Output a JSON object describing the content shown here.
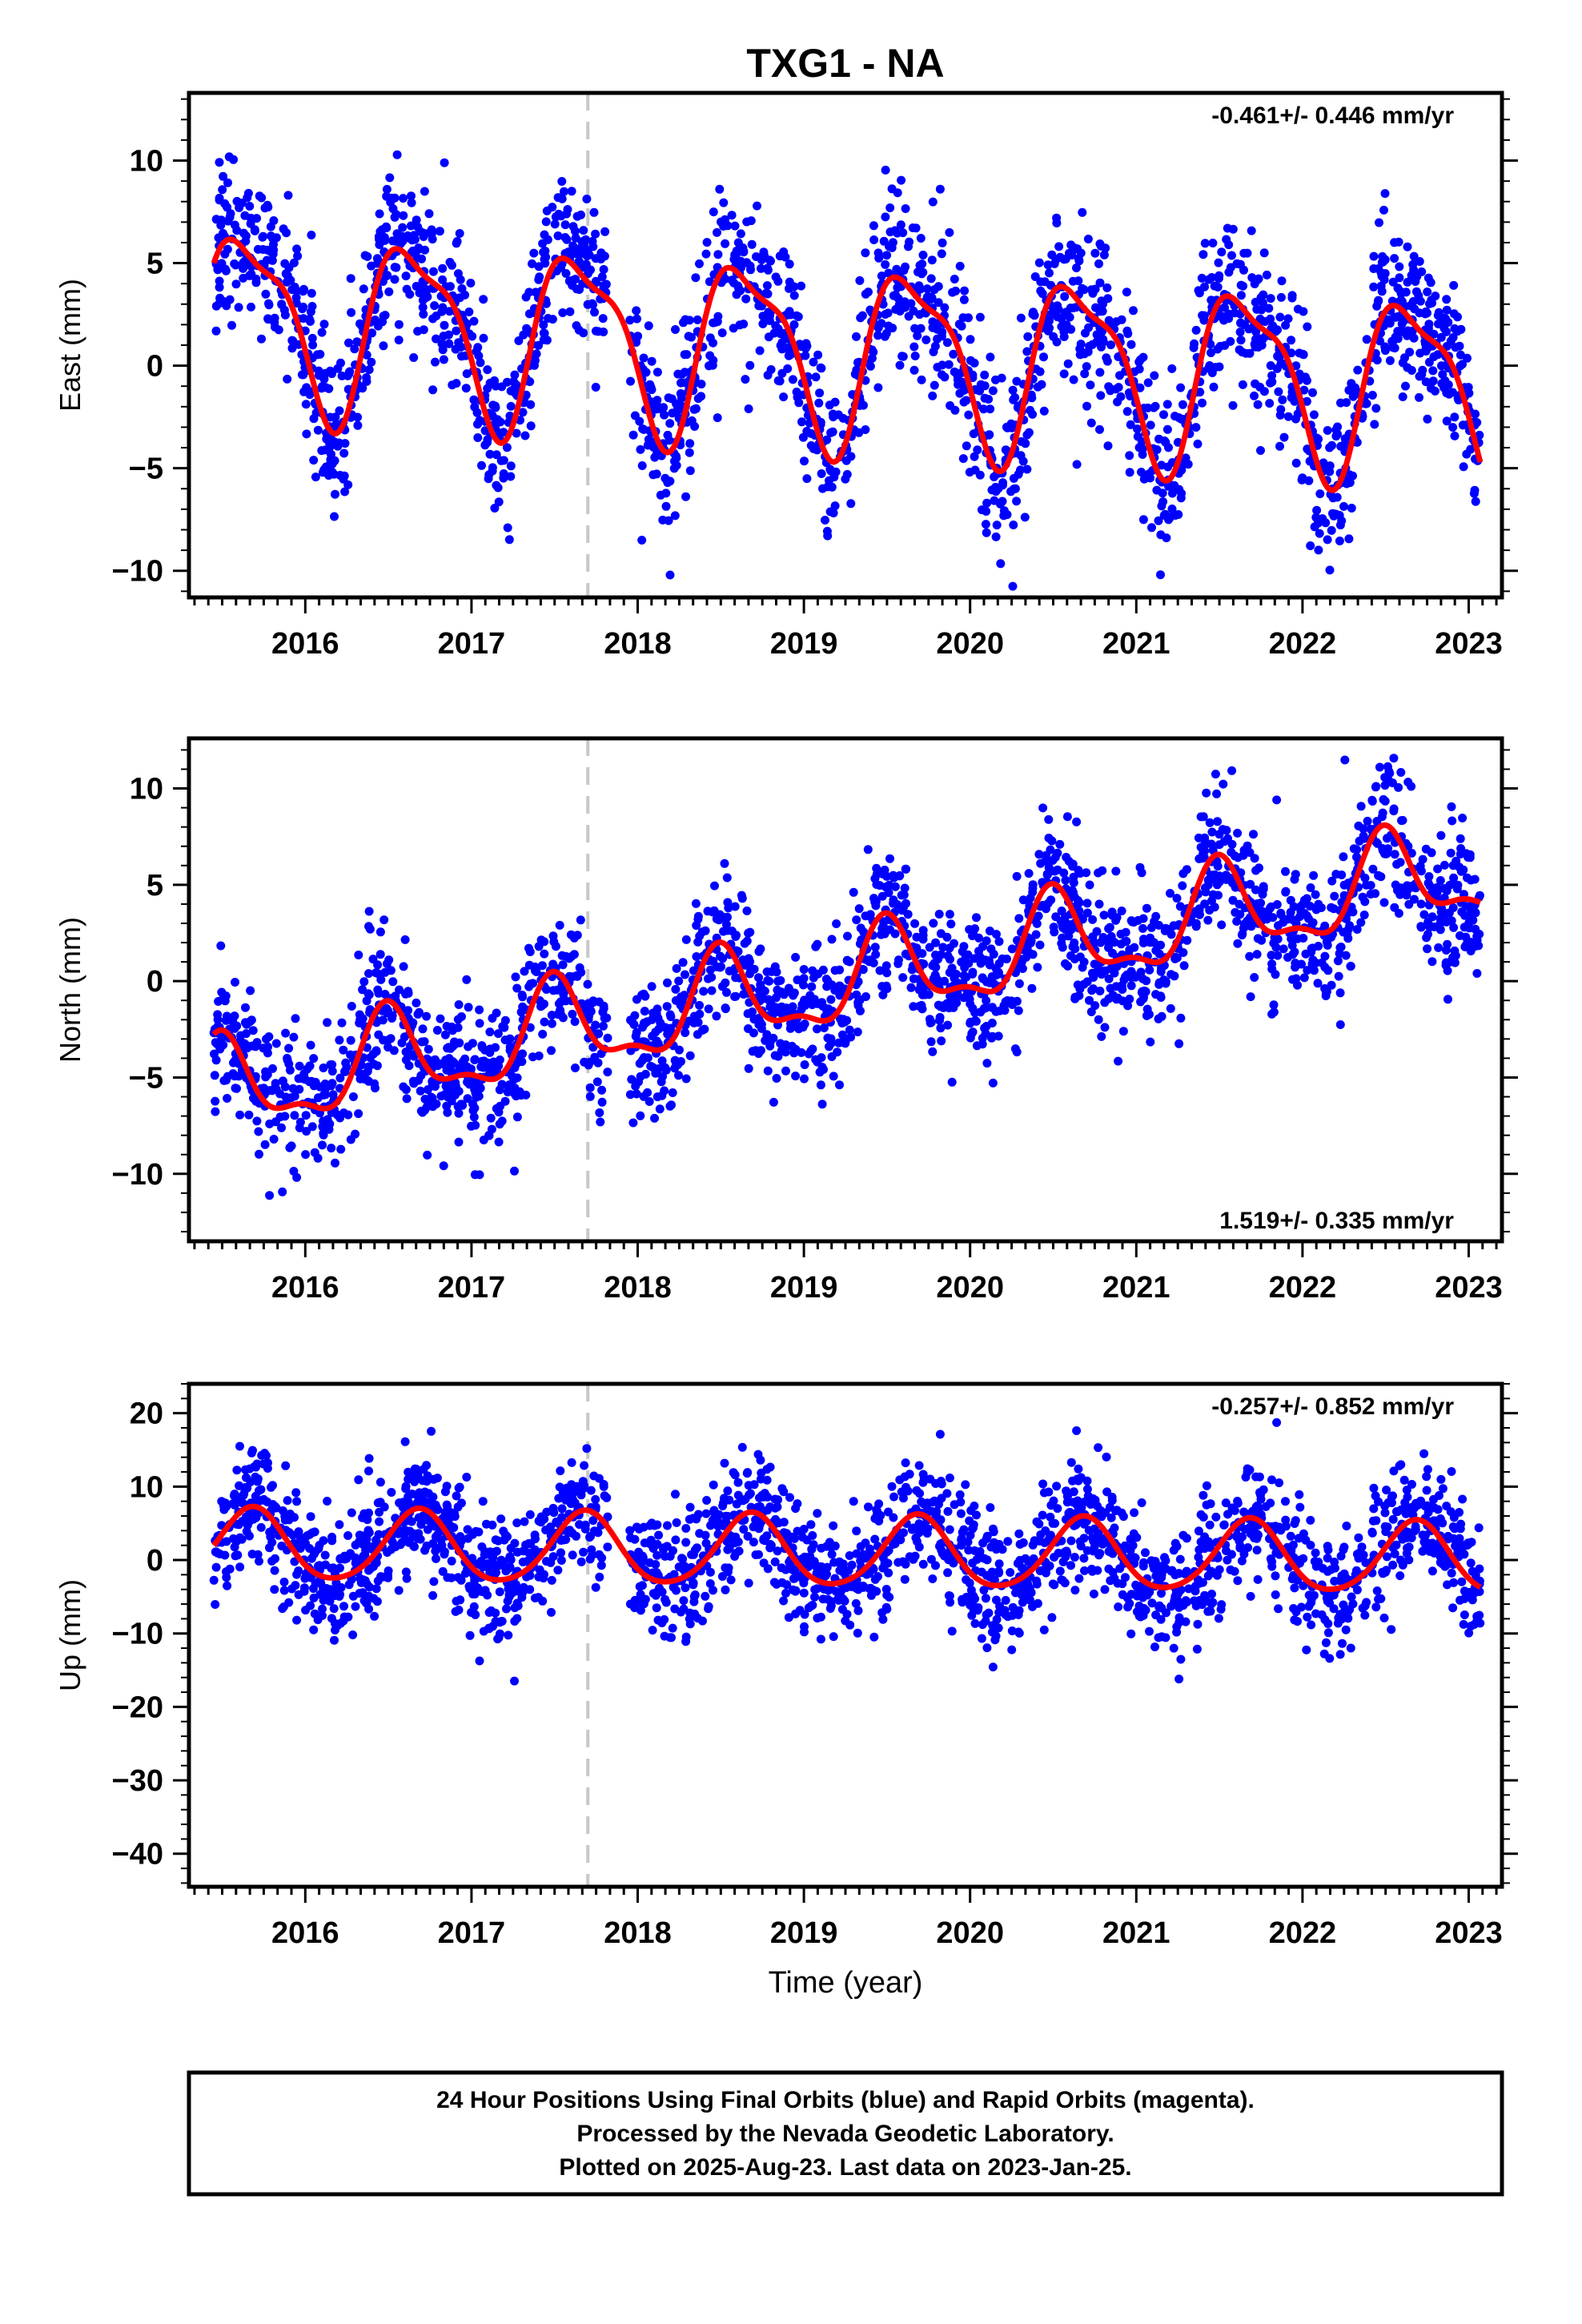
{
  "title": "TXG1 - NA",
  "xlabel": "Time (year)",
  "colors": {
    "final_orbits": "#0000ff",
    "fit": "#ff0000",
    "event_line": "#c8c8c8"
  },
  "footer": {
    "line1": "24 Hour Positions Using Final Orbits (blue) and Rapid Orbits (magenta).",
    "line2": "Processed by the Nevada Geodetic Laboratory.",
    "line3": "Plotted on 2025-Aug-23. Last data on 2023-Jan-25."
  },
  "chart_data": [
    {
      "type": "scatter",
      "panel": "east",
      "ylabel": "East (mm)",
      "rate_label": "-0.461+/- 0.446 mm/yr",
      "xlim": [
        2015.3,
        2023.2
      ],
      "ylim": [
        -11.3,
        13.3
      ],
      "x_ticks": [
        2016,
        2017,
        2018,
        2019,
        2020,
        2021,
        2022,
        2023
      ],
      "y_ticks": [
        -10,
        -5,
        0,
        5,
        10
      ],
      "event_line_x": 2017.7,
      "data_range": [
        2015.45,
        2023.07
      ],
      "fit": {
        "mean": 0.65,
        "trend_mm_per_yr": -0.461,
        "annual_amp": 4.2,
        "annual_peak": 0.65,
        "semiannual_amp": 1.3,
        "semiannual_peak": 0.45
      },
      "scatter_sigma": 2.0,
      "series": [
        {
          "name": "Final Orbits (blue)"
        }
      ]
    },
    {
      "type": "scatter",
      "panel": "north",
      "ylabel": "North (mm)",
      "rate_label": "1.519+/- 0.335 mm/yr",
      "xlim": [
        2015.3,
        2023.2
      ],
      "ylim": [
        -13.5,
        12.6
      ],
      "x_ticks": [
        2016,
        2017,
        2018,
        2019,
        2020,
        2021,
        2022,
        2023
      ],
      "y_ticks": [
        -10,
        -5,
        0,
        5,
        10
      ],
      "event_line_x": 2017.7,
      "data_range": [
        2015.45,
        2023.07
      ],
      "fit": {
        "mean": 0.0,
        "trend_mm_per_yr": 1.519,
        "annual_amp": 2.3,
        "annual_peak": 0.5,
        "semiannual_amp": 0.9,
        "semiannual_peak": 0.48
      },
      "scatter_sigma": 1.8,
      "series": [
        {
          "name": "Final Orbits (blue)"
        }
      ]
    },
    {
      "type": "scatter",
      "panel": "up",
      "ylabel": "Up (mm)",
      "rate_label": "-0.257+/- 0.852 mm/yr",
      "xlim": [
        2015.3,
        2023.2
      ],
      "ylim": [
        -44.5,
        24
      ],
      "x_ticks": [
        2016,
        2017,
        2018,
        2019,
        2020,
        2021,
        2022,
        2023
      ],
      "y_ticks": [
        -40,
        -30,
        -20,
        -10,
        0,
        10,
        20
      ],
      "event_line_x": 2017.7,
      "data_range": [
        2015.45,
        2023.07
      ],
      "fit": {
        "mean": 1.0,
        "trend_mm_per_yr": -0.257,
        "annual_amp": 4.8,
        "annual_peak": 0.68,
        "semiannual_amp": 0.6,
        "semiannual_peak": 0.2
      },
      "scatter_sigma": 4.2,
      "series": [
        {
          "name": "Final Orbits (blue)"
        }
      ]
    }
  ]
}
